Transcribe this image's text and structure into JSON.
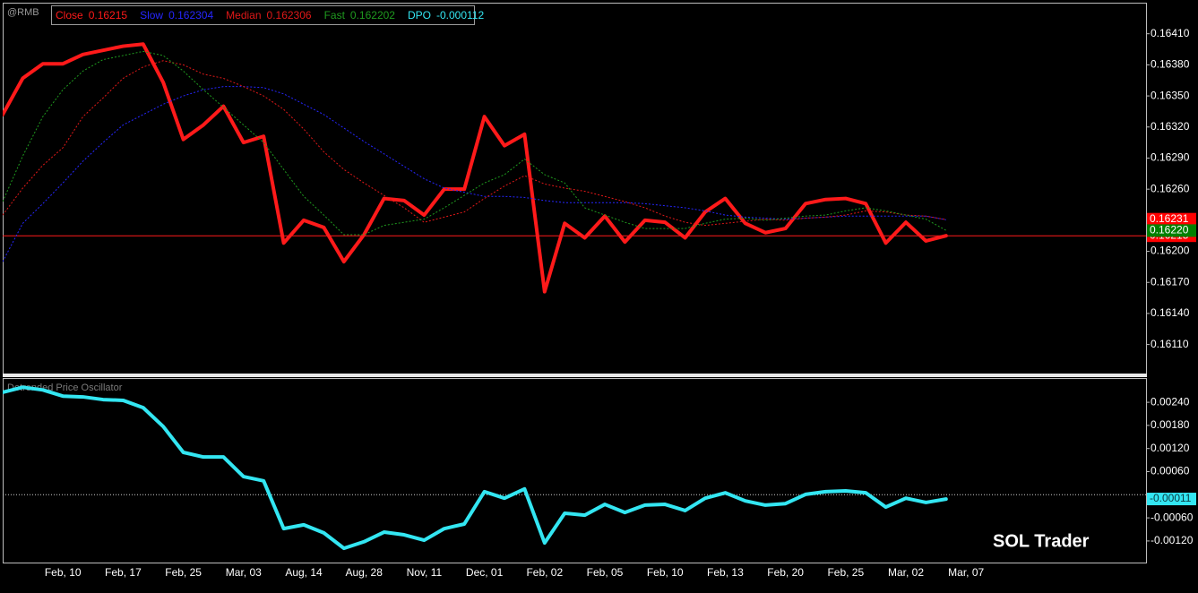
{
  "watermark": "SOL Trader",
  "chart_data": [
    {
      "type": "line",
      "title": "@RMB",
      "ylim": [
        0.16082,
        0.1644
      ],
      "yticks": [
        {
          "value": 0.1641,
          "label": "0.16410"
        },
        {
          "value": 0.1638,
          "label": "0.16380"
        },
        {
          "value": 0.1635,
          "label": "0.16350"
        },
        {
          "value": 0.1632,
          "label": "0.16320"
        },
        {
          "value": 0.1629,
          "label": "0.16290"
        },
        {
          "value": 0.1626,
          "label": "0.16260"
        },
        {
          "value": 0.162,
          "label": "0.16200"
        },
        {
          "value": 0.1617,
          "label": "0.16170"
        },
        {
          "value": 0.1614,
          "label": "0.16140"
        },
        {
          "value": 0.1611,
          "label": "0.16110"
        }
      ],
      "hline": 0.16215,
      "markers": [
        {
          "value": 0.16215,
          "color": "#ff0000"
        },
        {
          "value": 0.16231,
          "color": "#ff0000"
        },
        {
          "value": 0.1622,
          "label": "0.16220",
          "color": "#008000"
        }
      ],
      "series": [
        {
          "name": "Close",
          "color": "#ff1a1a",
          "width": 4,
          "dashed": false,
          "values": [
            0.16332,
            0.16367,
            0.16381,
            0.16381,
            0.1639,
            0.16394,
            0.16398,
            0.164,
            0.16363,
            0.16308,
            0.16322,
            0.1634,
            0.16305,
            0.16311,
            0.16208,
            0.1623,
            0.16223,
            0.1619,
            0.16216,
            0.16251,
            0.16249,
            0.16235,
            0.1626,
            0.1626,
            0.1633,
            0.16302,
            0.16313,
            0.16161,
            0.16227,
            0.16213,
            0.16234,
            0.16209,
            0.1623,
            0.16228,
            0.16213,
            0.16238,
            0.16251,
            0.16227,
            0.16218,
            0.16222,
            0.16246,
            0.1625,
            0.16251,
            0.16246,
            0.16208,
            0.16228,
            0.1621,
            0.16215,
            null
          ]
        },
        {
          "name": "Slow",
          "color": "#2626ff",
          "width": 1,
          "dashed": true,
          "values": [
            0.1619,
            0.16227,
            0.16246,
            0.16266,
            0.16287,
            0.16305,
            0.16322,
            0.16332,
            0.16342,
            0.1635,
            0.16356,
            0.16359,
            0.16359,
            0.16358,
            0.16352,
            0.16342,
            0.16332,
            0.16319,
            0.16306,
            0.16294,
            0.16282,
            0.1627,
            0.16261,
            0.16257,
            0.16253,
            0.16253,
            0.16252,
            0.16249,
            0.16247,
            0.16247,
            0.16247,
            0.16247,
            0.16246,
            0.16244,
            0.16242,
            0.16239,
            0.16235,
            0.16233,
            0.16232,
            0.16231,
            0.16232,
            0.16233,
            0.16234,
            0.16234,
            0.16234,
            0.16234,
            0.16234,
            0.162304,
            null
          ]
        },
        {
          "name": "Median",
          "color": "#e01818",
          "width": 1,
          "dashed": true,
          "values": [
            0.16235,
            0.16261,
            0.16283,
            0.163,
            0.1633,
            0.16348,
            0.16367,
            0.16378,
            0.16384,
            0.1638,
            0.16371,
            0.16367,
            0.16359,
            0.1635,
            0.16337,
            0.16318,
            0.16296,
            0.16279,
            0.16266,
            0.16254,
            0.16242,
            0.16228,
            0.16233,
            0.16238,
            0.16251,
            0.16263,
            0.16273,
            0.16265,
            0.16261,
            0.16258,
            0.16253,
            0.16248,
            0.16242,
            0.16234,
            0.16228,
            0.16225,
            0.16227,
            0.16229,
            0.16231,
            0.1623,
            0.16232,
            0.16233,
            0.16235,
            0.16239,
            0.16238,
            0.16235,
            0.16234,
            0.162306,
            null
          ]
        },
        {
          "name": "Fast",
          "color": "#1f9a1f",
          "width": 1,
          "dashed": true,
          "values": [
            0.16248,
            0.16292,
            0.1633,
            0.16356,
            0.16374,
            0.16385,
            0.16389,
            0.16393,
            0.16389,
            0.16374,
            0.16356,
            0.16339,
            0.16322,
            0.16305,
            0.16279,
            0.16253,
            0.16235,
            0.16216,
            0.16216,
            0.16225,
            0.16228,
            0.16231,
            0.16242,
            0.16254,
            0.16266,
            0.16274,
            0.16289,
            0.16274,
            0.16266,
            0.16242,
            0.16235,
            0.16228,
            0.16222,
            0.16222,
            0.16222,
            0.16227,
            0.16231,
            0.16232,
            0.1623,
            0.16232,
            0.16234,
            0.16235,
            0.16239,
            0.16242,
            0.16239,
            0.16235,
            0.16231,
            0.162202,
            null
          ]
        }
      ]
    },
    {
      "type": "line",
      "title": "Detrended Price Oscillator",
      "categories": [
        null,
        null,
        null,
        "Feb, 10",
        null,
        null,
        "Feb, 17",
        null,
        null,
        "Feb, 25",
        null,
        null,
        "Mar, 03",
        null,
        null,
        "Aug, 14",
        null,
        null,
        "Aug, 28",
        null,
        null,
        "Nov, 11",
        null,
        null,
        "Dec, 01",
        null,
        null,
        "Feb, 02",
        null,
        null,
        "Feb, 05",
        null,
        null,
        "Feb, 10",
        null,
        null,
        "Feb, 13",
        null,
        null,
        "Feb, 20",
        null,
        null,
        "Feb, 25",
        null,
        null,
        "Mar, 02",
        null,
        null,
        "Mar, 07"
      ],
      "ylim": [
        -0.00176,
        0.00303
      ],
      "yticks": [
        {
          "value": 0.0024,
          "label": "0.00240"
        },
        {
          "value": 0.0018,
          "label": "0.00180"
        },
        {
          "value": 0.0012,
          "label": "0.00120"
        },
        {
          "value": 0.0006,
          "label": "0.00060"
        },
        {
          "value": -0.0006,
          "label": "-0.00060"
        },
        {
          "value": -0.0012,
          "label": "-0.00120"
        }
      ],
      "hline": 0,
      "markers": [
        {
          "value": -0.00011,
          "color": "#33e6f2"
        }
      ],
      "series": [
        {
          "name": "DPO",
          "color": "#33e6f2",
          "width": 4,
          "dashed": false,
          "values": [
            0.00266,
            0.00279,
            0.00272,
            0.00256,
            0.00254,
            0.00247,
            0.00245,
            0.00226,
            0.00177,
            0.0011,
            0.00098,
            0.00098,
            0.00047,
            0.00036,
            -0.00088,
            -0.00078,
            -0.00099,
            -0.00139,
            -0.00122,
            -0.00097,
            -0.00104,
            -0.00118,
            -0.00088,
            -0.00076,
            8e-05,
            -9e-05,
            0.00015,
            -0.00125,
            -0.00048,
            -0.00053,
            -0.00025,
            -0.00046,
            -0.00027,
            -0.00025,
            -0.00041,
            -9e-05,
            5e-05,
            -0.00016,
            -0.00027,
            -0.00023,
            1e-05,
            8e-05,
            0.0001,
            5e-05,
            -0.00032,
            -9e-05,
            -0.0002,
            -0.000112,
            null
          ]
        }
      ]
    }
  ]
}
